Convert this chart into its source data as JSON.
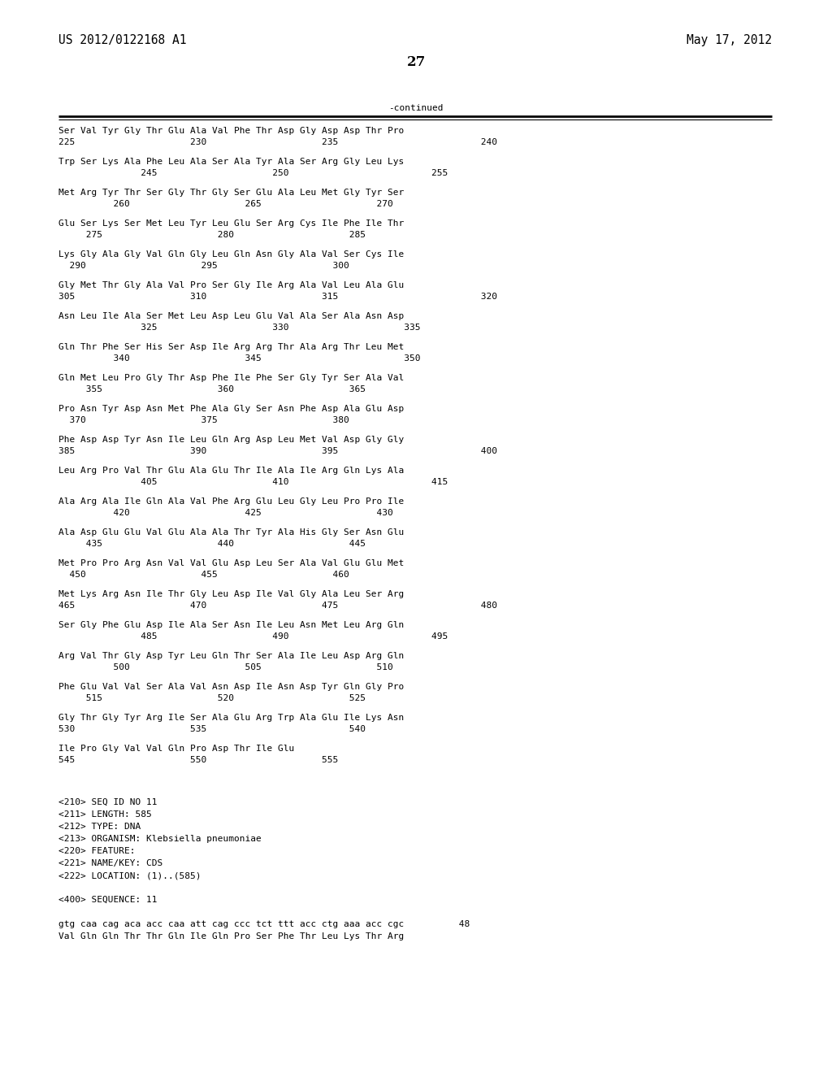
{
  "header_left": "US 2012/0122168 A1",
  "header_right": "May 17, 2012",
  "page_number": "27",
  "continued_label": "-continued",
  "background_color": "#ffffff",
  "text_color": "#000000",
  "seq_blocks": [
    [
      "Ser Val Tyr Gly Thr Glu Ala Val Phe Thr Asp Gly Asp Asp Thr Pro",
      "225                     230                     235                          240"
    ],
    [
      "Trp Ser Lys Ala Phe Leu Ala Ser Ala Tyr Ala Ser Arg Gly Leu Lys",
      "               245                     250                          255"
    ],
    [
      "Met Arg Tyr Thr Ser Gly Thr Gly Ser Glu Ala Leu Met Gly Tyr Ser",
      "          260                     265                     270"
    ],
    [
      "Glu Ser Lys Ser Met Leu Tyr Leu Glu Ser Arg Cys Ile Phe Ile Thr",
      "     275                     280                     285"
    ],
    [
      "Lys Gly Ala Gly Val Gln Gly Leu Gln Asn Gly Ala Val Ser Cys Ile",
      "  290                     295                     300"
    ],
    [
      "Gly Met Thr Gly Ala Val Pro Ser Gly Ile Arg Ala Val Leu Ala Glu",
      "305                     310                     315                          320"
    ],
    [
      "Asn Leu Ile Ala Ser Met Leu Asp Leu Glu Val Ala Ser Ala Asn Asp",
      "               325                     330                     335"
    ],
    [
      "Gln Thr Phe Ser His Ser Asp Ile Arg Arg Thr Ala Arg Thr Leu Met",
      "          340                     345                          350"
    ],
    [
      "Gln Met Leu Pro Gly Thr Asp Phe Ile Phe Ser Gly Tyr Ser Ala Val",
      "     355                     360                     365"
    ],
    [
      "Pro Asn Tyr Asp Asn Met Phe Ala Gly Ser Asn Phe Asp Ala Glu Asp",
      "  370                     375                     380"
    ],
    [
      "Phe Asp Asp Tyr Asn Ile Leu Gln Arg Asp Leu Met Val Asp Gly Gly",
      "385                     390                     395                          400"
    ],
    [
      "Leu Arg Pro Val Thr Glu Ala Glu Thr Ile Ala Ile Arg Gln Lys Ala",
      "               405                     410                          415"
    ],
    [
      "Ala Arg Ala Ile Gln Ala Val Phe Arg Glu Leu Gly Leu Pro Pro Ile",
      "          420                     425                     430"
    ],
    [
      "Ala Asp Glu Glu Val Glu Ala Ala Thr Tyr Ala His Gly Ser Asn Glu",
      "     435                     440                     445"
    ],
    [
      "Met Pro Pro Arg Asn Val Val Glu Asp Leu Ser Ala Val Glu Glu Met",
      "  450                     455                     460"
    ],
    [
      "Met Lys Arg Asn Ile Thr Gly Leu Asp Ile Val Gly Ala Leu Ser Arg",
      "465                     470                     475                          480"
    ],
    [
      "Ser Gly Phe Glu Asp Ile Ala Ser Asn Ile Leu Asn Met Leu Arg Gln",
      "               485                     490                          495"
    ],
    [
      "Arg Val Thr Gly Asp Tyr Leu Gln Thr Ser Ala Ile Leu Asp Arg Gln",
      "          500                     505                     510"
    ],
    [
      "Phe Glu Val Val Ser Ala Val Asn Asp Ile Asn Asp Tyr Gln Gly Pro",
      "     515                     520                     525"
    ],
    [
      "Gly Thr Gly Tyr Arg Ile Ser Ala Glu Arg Trp Ala Glu Ile Lys Asn",
      "530                     535                          540"
    ],
    [
      "Ile Pro Gly Val Val Gln Pro Asp Thr Ile Glu",
      "545                     550                     555"
    ]
  ],
  "metadata_lines": [
    "<210> SEQ ID NO 11",
    "<211> LENGTH: 585",
    "<212> TYPE: DNA",
    "<213> ORGANISM: Klebsiella pneumoniae",
    "<220> FEATURE:",
    "<221> NAME/KEY: CDS",
    "<222> LOCATION: (1)..(585)",
    "",
    "<400> SEQUENCE: 11",
    "",
    "gtg caa cag aca acc caa att cag ccc tct ttt acc ctg aaa acc cgc          48",
    "Val Gln Gln Thr Thr Gln Ile Gln Pro Ser Phe Thr Leu Lys Thr Arg"
  ],
  "font_size_header": 10.5,
  "font_size_body": 8.0,
  "font_size_page": 12
}
